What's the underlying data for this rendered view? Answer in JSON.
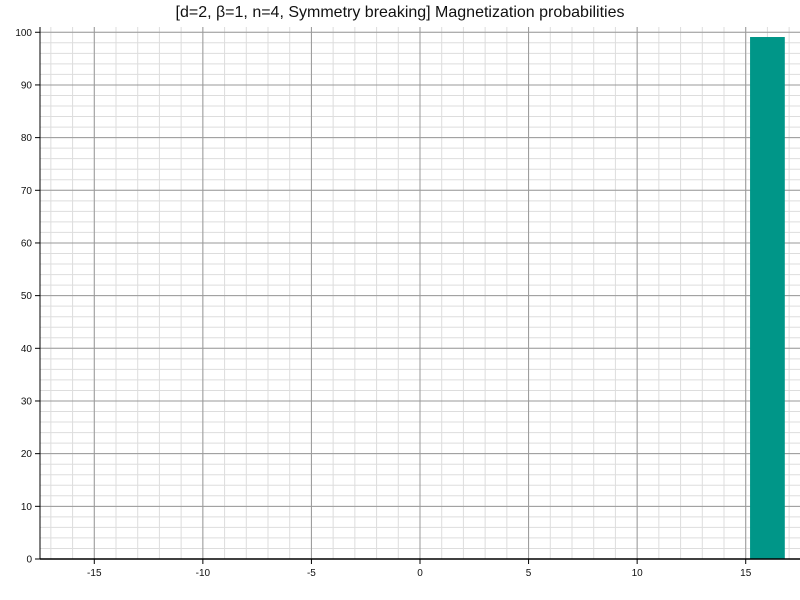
{
  "chart_data": {
    "type": "bar",
    "title": "[d=2, β=1, n=4, Symmetry breaking] Magnetization probabilities",
    "xlabel": "",
    "ylabel": "",
    "xlim": [
      -17.5,
      17.5
    ],
    "ylim": [
      0,
      101
    ],
    "x_ticks": [
      -15,
      -10,
      -5,
      0,
      5,
      10,
      15
    ],
    "y_ticks": [
      0,
      10,
      20,
      30,
      40,
      50,
      60,
      70,
      80,
      90,
      100
    ],
    "x_minor_step": 1,
    "y_minor_step": 2,
    "bar_width": 1.6,
    "grid": true,
    "bar_color": "#009688",
    "bars": [
      {
        "x": 16,
        "value": 99.1
      }
    ]
  }
}
